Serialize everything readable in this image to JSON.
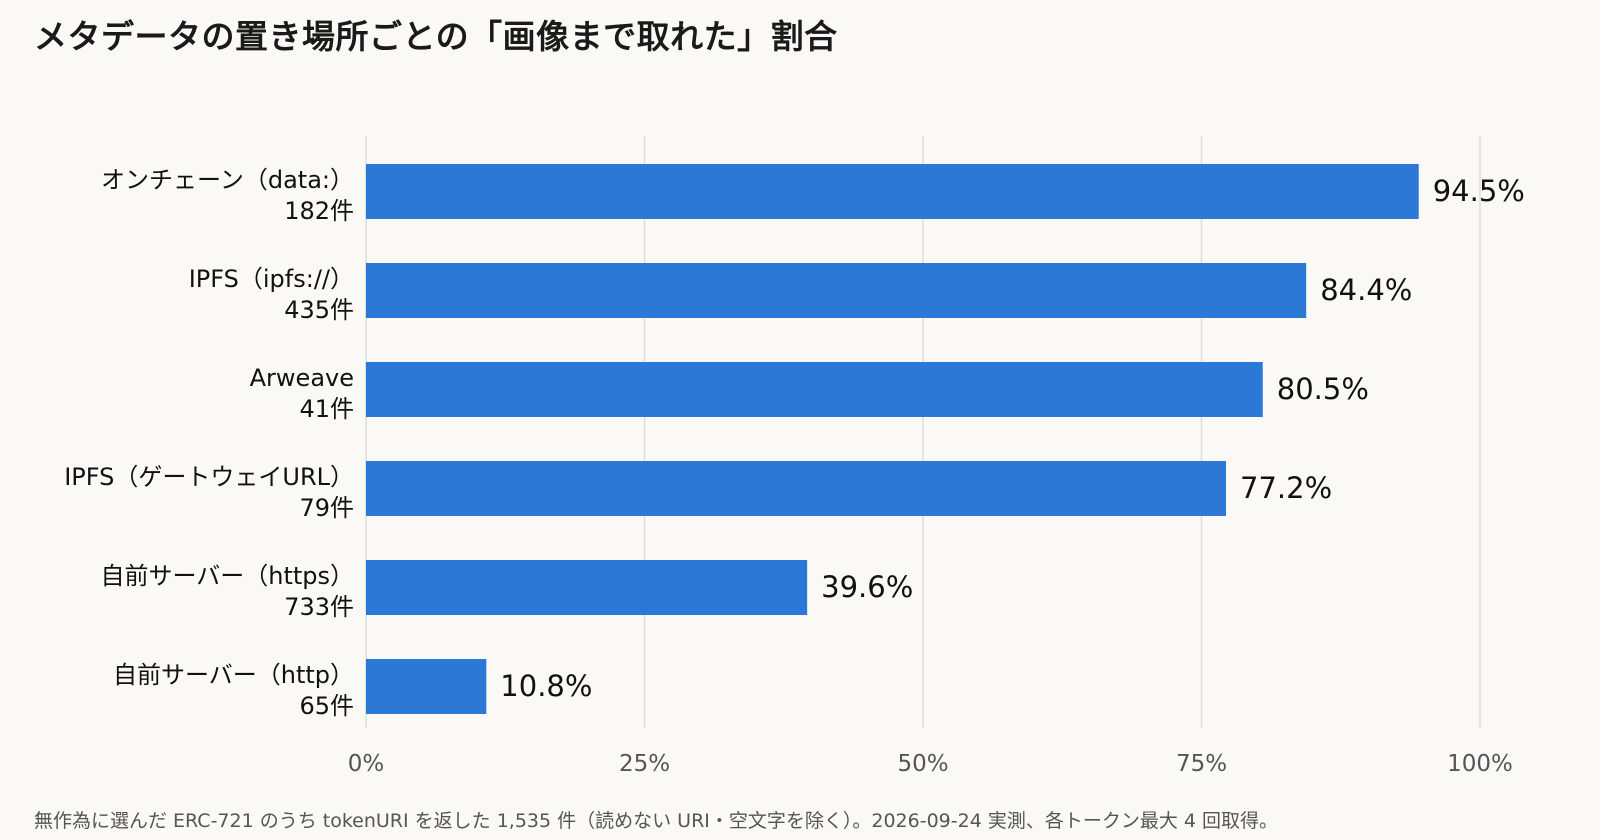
{
  "chart_data": {
    "type": "bar",
    "orientation": "horizontal",
    "title": "メタデータの置き場所ごとの「画像まで取れた」割合",
    "footnote": "無作為に選んだ ERC-721 のうち tokenURI を返した 1,535 件（読めない URI・空文字を除く）。2026-09-24 実測、各トークン最大 4 回取得。",
    "categories": [
      {
        "label": "オンチェーン（data:）",
        "count": "182件"
      },
      {
        "label": "IPFS（ipfs://）",
        "count": "435件"
      },
      {
        "label": "Arweave",
        "count": "41件"
      },
      {
        "label": "IPFS（ゲートウェイURL）",
        "count": "79件"
      },
      {
        "label": "自前サーバー（https）",
        "count": "733件"
      },
      {
        "label": "自前サーバー（http）",
        "count": "65件"
      }
    ],
    "values": [
      94.5,
      84.4,
      80.5,
      77.2,
      39.6,
      10.8
    ],
    "value_labels": [
      "94.5%",
      "84.4%",
      "80.5%",
      "77.2%",
      "39.6%",
      "10.8%"
    ],
    "xlim": [
      0,
      100
    ],
    "xticks": [
      0,
      25,
      50,
      75,
      100
    ],
    "xtick_labels": [
      "0%",
      "25%",
      "50%",
      "75%",
      "100%"
    ],
    "grid": "vertical",
    "legend": "none",
    "colors": {
      "bar": "#2b78d6",
      "grid": "#dddddd",
      "background": "#faf9f6"
    }
  }
}
